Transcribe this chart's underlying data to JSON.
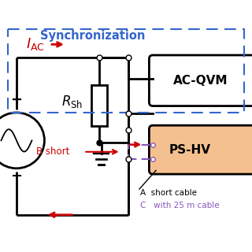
{
  "title": "Synchronization",
  "title_color": "#3366cc",
  "title_fontsize": 10.5,
  "background_color": "#ffffff",
  "colors": {
    "black": "#000000",
    "red": "#cc0000",
    "blue_dashed": "#3366cc",
    "purple_dashed": "#8855bb",
    "ps_hv_fill": "#f5c090",
    "ps_hv_border": "#000000"
  },
  "layout": {
    "xlim": [
      0,
      1.22
    ],
    "ylim": [
      0,
      1.0
    ],
    "figw": 3.2,
    "figh": 3.2,
    "dpi": 100
  }
}
